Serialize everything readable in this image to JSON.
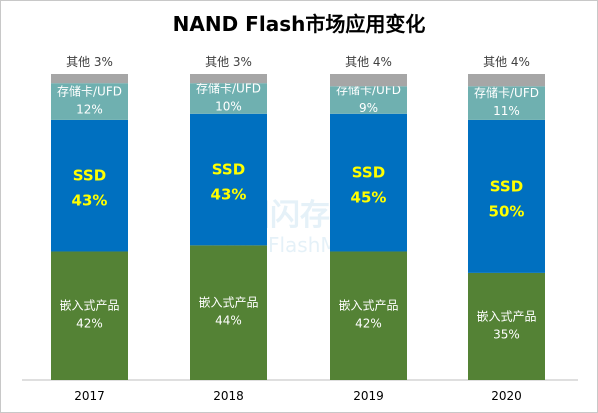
{
  "chart_data": {
    "type": "bar",
    "stacked": true,
    "percent_stacked": true,
    "title": "NAND Flash市场应用变化",
    "xlabel": "",
    "ylabel": "",
    "ylim": [
      0,
      100
    ],
    "grid": false,
    "legend": "none",
    "categories": [
      "2017",
      "2018",
      "2019",
      "2020"
    ],
    "series": [
      {
        "name": "嵌入式产品",
        "values": [
          42,
          44,
          42,
          35
        ],
        "labels": [
          "42%",
          "44%",
          "42%",
          "35%"
        ],
        "color": "#548235",
        "text_color": "#ffffff"
      },
      {
        "name": "SSD",
        "values": [
          43,
          43,
          45,
          50
        ],
        "labels": [
          "43%",
          "43%",
          "45%",
          "50%"
        ],
        "color": "#0070c0",
        "text_color": "#ffff00",
        "bold": true
      },
      {
        "name": "存储卡/UFD",
        "values": [
          12,
          10,
          9,
          11
        ],
        "labels": [
          "12%",
          "10%",
          "9%",
          "11%"
        ],
        "color": "#6fb0b0",
        "text_color": "#ffffff"
      },
      {
        "name": "其他",
        "values": [
          3,
          3,
          4,
          4
        ],
        "labels": [
          "3%",
          "3%",
          "4%",
          "4%"
        ],
        "color": "#a6a6a6",
        "text_color": "#404040",
        "label_outside": true
      }
    ]
  },
  "watermark": "中国闪存市场 ChinaFlashMarket"
}
